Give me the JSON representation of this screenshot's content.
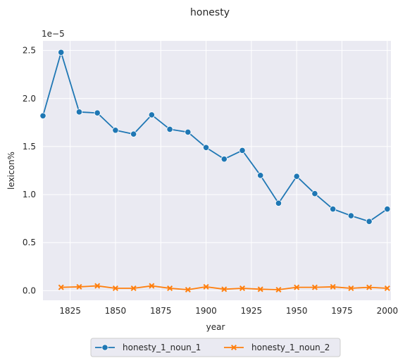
{
  "chart_data": {
    "type": "line",
    "title": "honesty",
    "xlabel": "year",
    "ylabel": "lexicon%",
    "y_scale_factor": "1e−5",
    "xlim": [
      1810,
      2002
    ],
    "ylim": [
      -0.1,
      2.6
    ],
    "x_ticks": [
      1825,
      1850,
      1875,
      1900,
      1925,
      1950,
      1975,
      2000
    ],
    "y_ticks": [
      0.0,
      0.5,
      1.0,
      1.5,
      2.0,
      2.5
    ],
    "y_tick_labels": [
      "0.0",
      "0.5",
      "1.0",
      "1.5",
      "2.0",
      "2.5"
    ],
    "grid": true,
    "legend_position": "bottom-center, outside",
    "series": [
      {
        "name": "honesty_1_noun_1",
        "color": "#1f77b4",
        "marker": "circle",
        "x": [
          1810,
          1820,
          1830,
          1840,
          1850,
          1860,
          1870,
          1880,
          1890,
          1900,
          1910,
          1920,
          1930,
          1940,
          1950,
          1960,
          1970,
          1980,
          1990,
          2000
        ],
        "values": [
          1.82,
          2.48,
          1.86,
          1.85,
          1.67,
          1.63,
          1.83,
          1.68,
          1.65,
          1.49,
          1.37,
          1.46,
          1.2,
          0.91,
          1.19,
          1.01,
          0.85,
          0.78,
          0.72,
          0.85
        ]
      },
      {
        "name": "honesty_1_noun_2",
        "color": "#ff7f0e",
        "marker": "x",
        "x": [
          1820,
          1830,
          1840,
          1850,
          1860,
          1870,
          1880,
          1890,
          1900,
          1910,
          1920,
          1930,
          1940,
          1950,
          1960,
          1970,
          1980,
          1990,
          2000
        ],
        "values": [
          0.035,
          0.04,
          0.05,
          0.025,
          0.025,
          0.05,
          0.025,
          0.01,
          0.04,
          0.015,
          0.025,
          0.015,
          0.01,
          0.035,
          0.035,
          0.04,
          0.025,
          0.035,
          0.025
        ]
      }
    ]
  }
}
